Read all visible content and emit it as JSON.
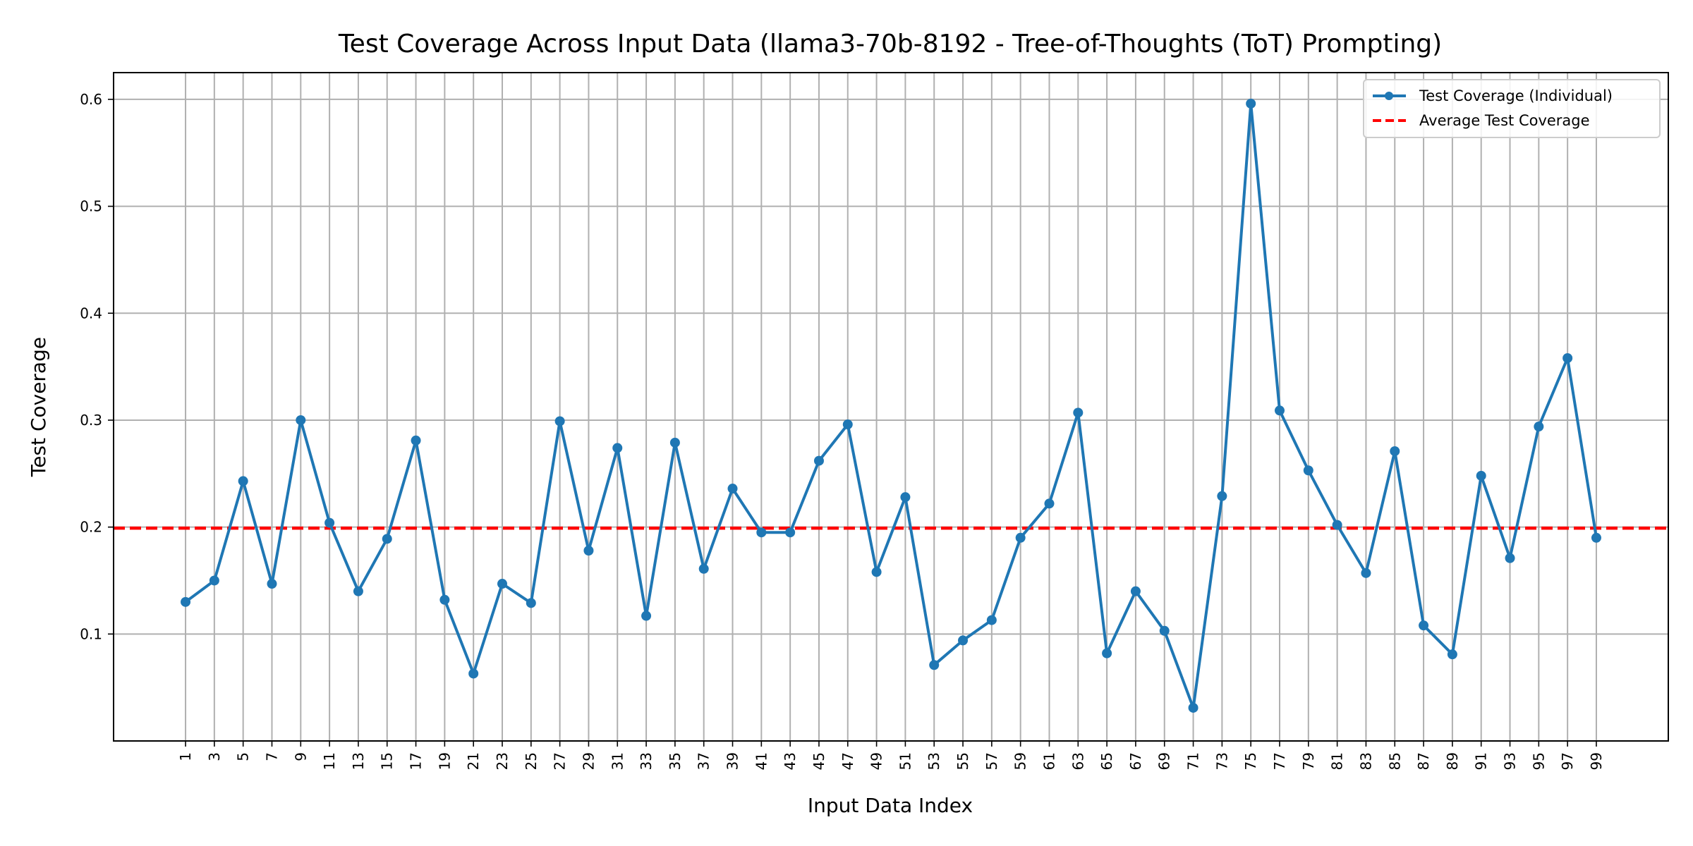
{
  "chart_data": {
    "type": "line",
    "title": "Test Coverage Across Input Data (llama3-70b-8192 - Tree-of-Thoughts (ToT) Prompting)",
    "xlabel": "Input Data Index",
    "ylabel": "Test Coverage",
    "x": [
      1,
      3,
      5,
      7,
      9,
      11,
      13,
      15,
      17,
      19,
      21,
      23,
      25,
      27,
      29,
      31,
      33,
      35,
      37,
      39,
      41,
      43,
      45,
      47,
      49,
      51,
      53,
      55,
      57,
      59,
      61,
      63,
      65,
      67,
      69,
      71,
      73,
      75,
      77,
      79,
      81,
      83,
      85,
      87,
      89,
      91,
      93,
      95,
      97,
      99
    ],
    "series": [
      {
        "name": "Test Coverage (Individual)",
        "color": "#1f77b4",
        "values": [
          0.13,
          0.15,
          0.243,
          0.147,
          0.3,
          0.204,
          0.14,
          0.189,
          0.281,
          0.132,
          0.063,
          0.147,
          0.129,
          0.299,
          0.178,
          0.274,
          0.117,
          0.279,
          0.161,
          0.236,
          0.195,
          0.195,
          0.262,
          0.296,
          0.158,
          0.228,
          0.071,
          0.094,
          0.113,
          0.19,
          0.222,
          0.307,
          0.082,
          0.14,
          0.103,
          0.031,
          0.229,
          0.596,
          0.309,
          0.253,
          0.202,
          0.157,
          0.271,
          0.108,
          0.081,
          0.248,
          0.171,
          0.294,
          0.358,
          0.19
        ]
      }
    ],
    "average": {
      "name": "Average Test Coverage",
      "value": 0.199,
      "color": "#ff0000",
      "style": "dashed"
    },
    "xlim": [
      -4,
      104
    ],
    "ylim": [
      0,
      0.625
    ],
    "yticks": [
      0.1,
      0.2,
      0.3,
      0.4,
      0.5,
      0.6
    ],
    "ytick_labels": [
      "0.1",
      "0.2",
      "0.3",
      "0.4",
      "0.5",
      "0.6"
    ],
    "xtick_labels": [
      "1",
      "3",
      "5",
      "7",
      "9",
      "11",
      "13",
      "15",
      "17",
      "19",
      "21",
      "23",
      "25",
      "27",
      "29",
      "31",
      "33",
      "35",
      "37",
      "39",
      "41",
      "43",
      "45",
      "47",
      "49",
      "51",
      "53",
      "55",
      "57",
      "59",
      "61",
      "63",
      "65",
      "67",
      "69",
      "71",
      "73",
      "75",
      "77",
      "79",
      "81",
      "83",
      "85",
      "87",
      "89",
      "91",
      "93",
      "95",
      "97",
      "99"
    ],
    "grid": true,
    "legend": "top-right"
  }
}
